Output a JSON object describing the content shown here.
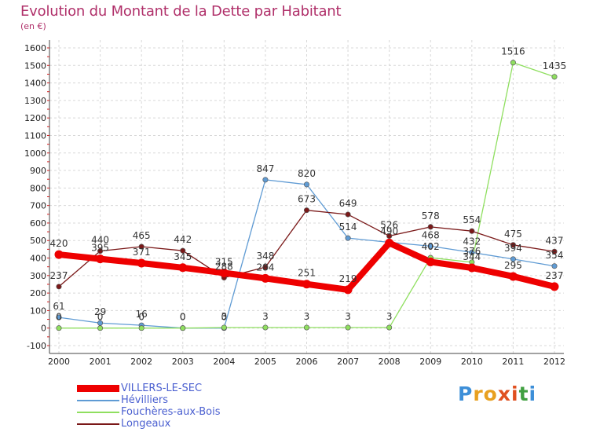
{
  "title": "Evolution du Montant de la Dette par Habitant",
  "subtitle": "(en €)",
  "logo": {
    "text": "Proxiti",
    "letters": [
      "P",
      "r",
      "o",
      "x",
      "i",
      "t",
      "i"
    ],
    "colors": [
      "#3d8fd8",
      "#e8a020",
      "#e8a020",
      "#e05020",
      "#e05020",
      "#40a040",
      "#3d8fd8"
    ]
  },
  "chart_data": {
    "type": "line",
    "x": [
      "2000",
      "2001",
      "2002",
      "2003",
      "2004",
      "2005",
      "2006",
      "2007",
      "2008",
      "2009",
      "2010",
      "2011",
      "2012"
    ],
    "yticks": [
      "-100",
      "0",
      "100",
      "200",
      "300",
      "400",
      "500",
      "600",
      "700",
      "800",
      "900",
      "1000",
      "1100",
      "1200",
      "1300",
      "1400",
      "1500",
      "1600"
    ],
    "ylim": [
      -100,
      1600
    ],
    "grid": true,
    "legend_position": "bottom-left",
    "series": [
      {
        "name": "VILLERS-LE-SEC",
        "color": "#ee0000",
        "width": 8,
        "marker": 5,
        "values": [
          420,
          395,
          371,
          345,
          315,
          284,
          251,
          219,
          486,
          378,
          344,
          295,
          237
        ],
        "labels": [
          "420",
          "395",
          "371",
          "345",
          "315",
          "284",
          "251",
          "219",
          "",
          "",
          "344",
          "295",
          "237"
        ]
      },
      {
        "name": "Hévilliers",
        "color": "#5f9bd4",
        "width": 1.3,
        "marker": 3.2,
        "values": [
          61,
          29,
          16,
          0,
          0,
          847,
          820,
          514,
          490,
          468,
          432,
          394,
          354
        ],
        "labels": [
          "61",
          "29",
          "16",
          "0",
          "0",
          "847",
          "820",
          "514",
          "490",
          "468",
          "432",
          "394",
          "354"
        ]
      },
      {
        "name": "Fouchères-aux-Bois",
        "color": "#8fdf5f",
        "width": 1.3,
        "marker": 3.2,
        "values": [
          0,
          0,
          0,
          0,
          3,
          3,
          3,
          3,
          3,
          402,
          376,
          1516,
          1435
        ],
        "labels": [
          "0",
          "0",
          "0",
          "0",
          "3",
          "3",
          "3",
          "3",
          "3",
          "402",
          "376",
          "1516",
          "1435"
        ]
      },
      {
        "name": "Longeaux",
        "color": "#7a1818",
        "width": 1.3,
        "marker": 3.2,
        "values": [
          237,
          440,
          465,
          442,
          288,
          348,
          673,
          649,
          526,
          578,
          554,
          475,
          437
        ],
        "labels": [
          "237",
          "440",
          "465",
          "442",
          "288",
          "348",
          "673",
          "649",
          "526",
          "578",
          "554",
          "475",
          "437"
        ]
      }
    ]
  }
}
